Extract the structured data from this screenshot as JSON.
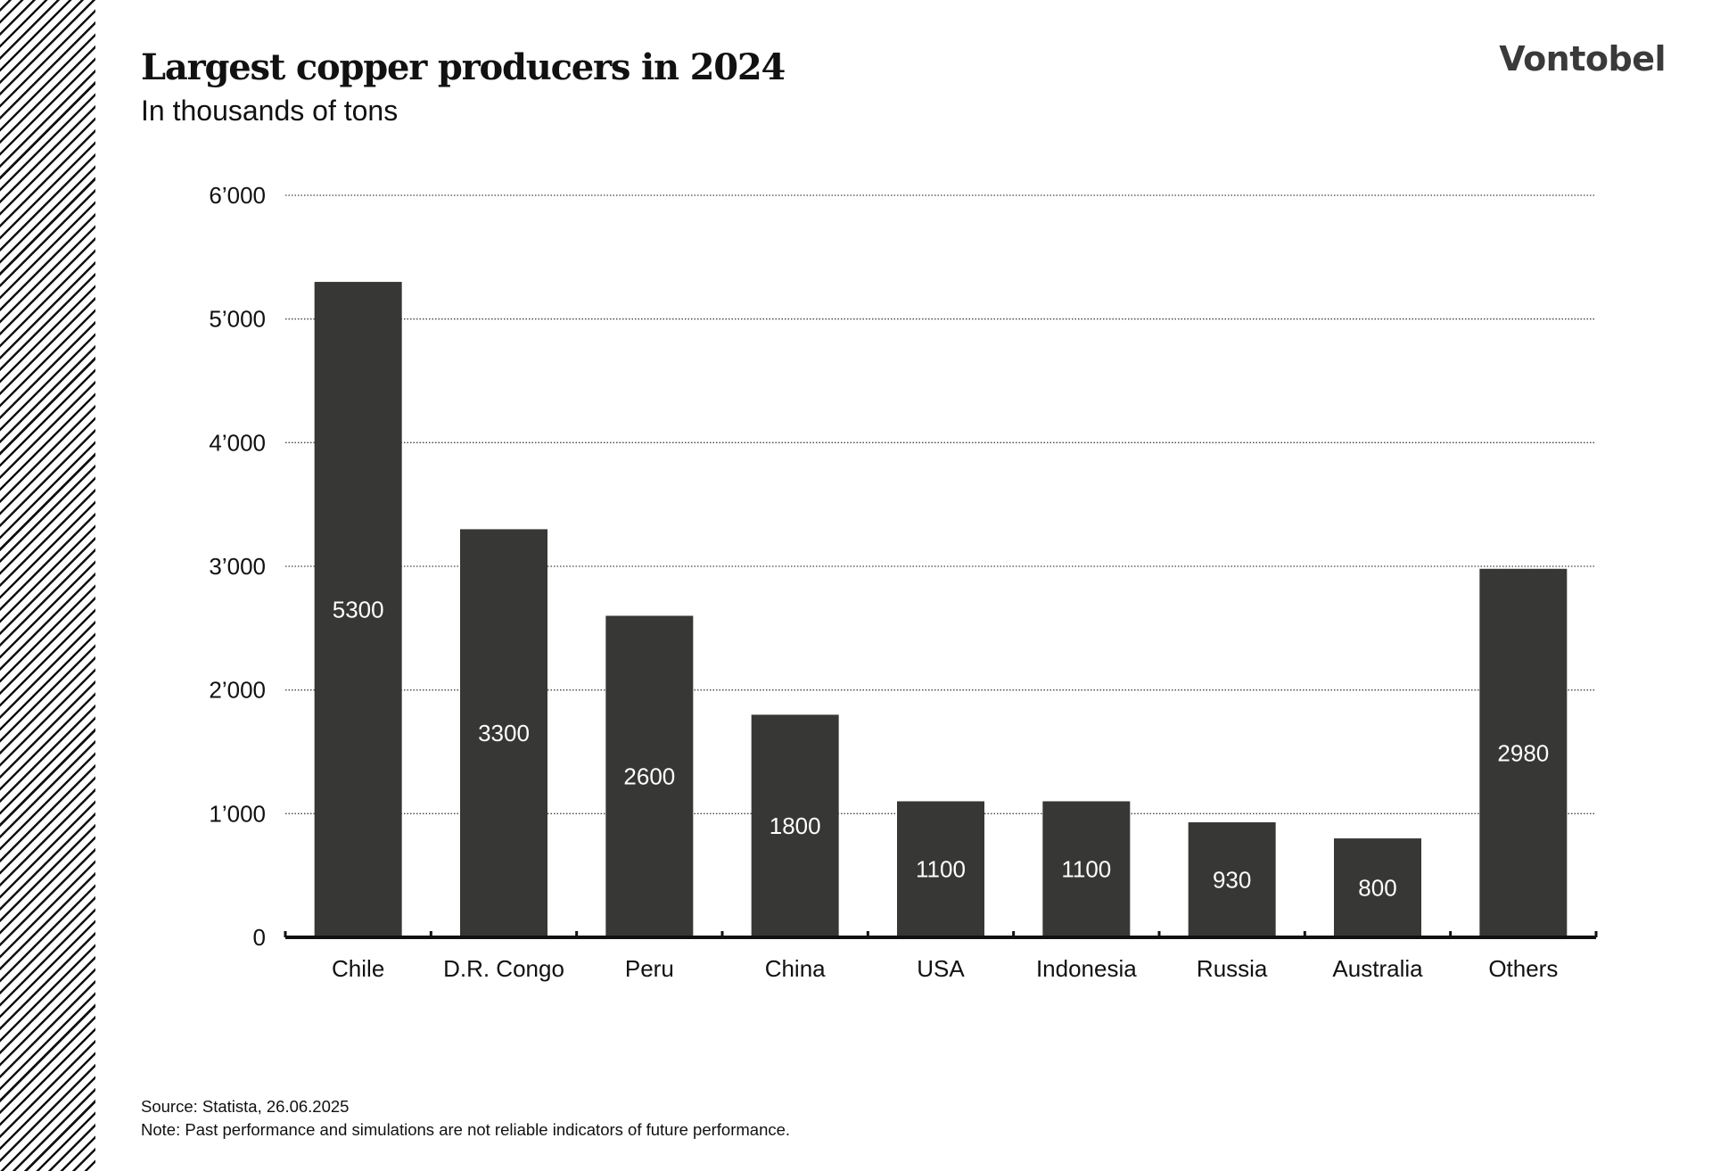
{
  "header": {
    "title": "Largest copper producers in 2024",
    "subtitle": "In thousands of tons",
    "logo": "Vontobel"
  },
  "footer": {
    "source": "Source: Statista, 26.06.2025",
    "note": "Note: Past performance and simulations are not reliable indicators of future performance."
  },
  "colors": {
    "bar": "#373836",
    "bar_label": "#ffffff",
    "grid": "#444444",
    "axis": "#111111"
  },
  "chart_data": {
    "type": "bar",
    "title": "Largest copper producers in 2024",
    "subtitle": "In thousands of tons",
    "xlabel": "",
    "ylabel": "",
    "categories": [
      "Chile",
      "D.R. Congo",
      "Peru",
      "China",
      "USA",
      "Indonesia",
      "Russia",
      "Australia",
      "Others"
    ],
    "values": [
      5300,
      3300,
      2600,
      1800,
      1100,
      1100,
      930,
      800,
      2980
    ],
    "data_labels": [
      "5300",
      "3300",
      "2600",
      "1800",
      "1100",
      "1100",
      "930",
      "800",
      "2980"
    ],
    "ylim": [
      0,
      6000
    ],
    "yticks": [
      0,
      1000,
      2000,
      3000,
      4000,
      5000,
      6000
    ],
    "ytick_labels": [
      "0",
      "1’000",
      "2’000",
      "3’000",
      "4’000",
      "5’000",
      "6’000"
    ],
    "grid": "horizontal dotted",
    "legend": "none",
    "data_label_position": "inside bar, middle"
  }
}
